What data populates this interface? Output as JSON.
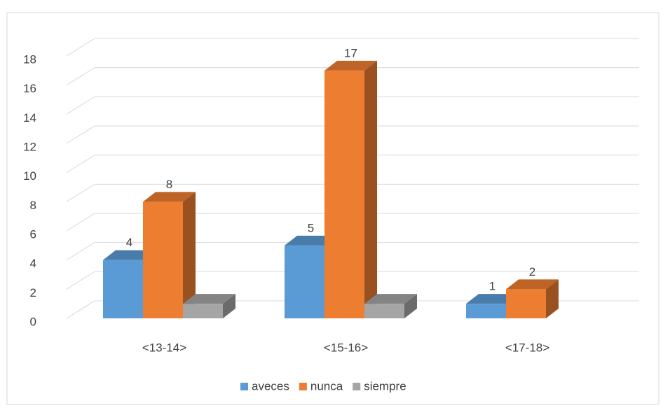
{
  "chart_data": {
    "type": "bar3d",
    "categories": [
      "<13-14>",
      "<15-16>",
      "<17-18>"
    ],
    "series": [
      {
        "name": "aveces",
        "color": "#5b9bd5",
        "values": [
          4,
          5,
          1
        ]
      },
      {
        "name": "nunca",
        "color": "#ed7d31",
        "values": [
          8,
          17,
          2
        ]
      },
      {
        "name": "siempre",
        "color": "#a5a5a5",
        "values": [
          1,
          1,
          null
        ]
      }
    ],
    "labeled_series": [
      "aveces",
      "nunca"
    ],
    "ylim": [
      0,
      18
    ],
    "yticks": [
      0,
      2,
      4,
      6,
      8,
      10,
      12,
      14,
      16,
      18
    ],
    "grid": true,
    "legend": "bottom"
  }
}
